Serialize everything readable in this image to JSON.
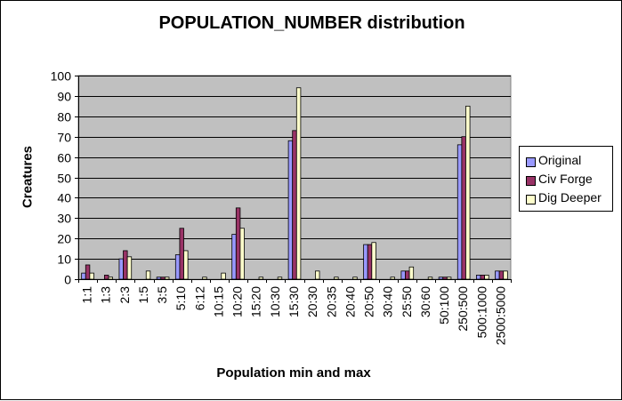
{
  "chart_data": {
    "type": "bar",
    "title": "POPULATION_NUMBER distribution",
    "xlabel": "Population min and max",
    "ylabel": "Creatures",
    "ylim": [
      0,
      100
    ],
    "yticks": [
      0,
      10,
      20,
      30,
      40,
      50,
      60,
      70,
      80,
      90,
      100
    ],
    "grid": true,
    "legend_position": "right",
    "categories": [
      "1:1",
      "1:3",
      "2:3",
      "1:5",
      "3:5",
      "5:10",
      "6:12",
      "10:15",
      "10:20",
      "15:20",
      "10:30",
      "15:30",
      "20:30",
      "20:35",
      "20:40",
      "20:50",
      "30:40",
      "25:50",
      "30:60",
      "50:100",
      "250:500",
      "500:1000",
      "2500:5000"
    ],
    "series": [
      {
        "name": "Original",
        "color": "#9999ff",
        "values": [
          3,
          0,
          10,
          0,
          1,
          12,
          0,
          0,
          22,
          0,
          0,
          68,
          0,
          0,
          0,
          17,
          0,
          4,
          0,
          1,
          66,
          2,
          4
        ]
      },
      {
        "name": "Civ Forge",
        "color": "#993366",
        "values": [
          7,
          2,
          14,
          0,
          1,
          25,
          0,
          0,
          35,
          0,
          0,
          73,
          0,
          0,
          0,
          17,
          0,
          4,
          0,
          1,
          70,
          2,
          4
        ]
      },
      {
        "name": "Dig Deeper",
        "color": "#ffffcc",
        "values": [
          3,
          1,
          11,
          4,
          1,
          14,
          1,
          3,
          25,
          1,
          1,
          94,
          4,
          1,
          1,
          18,
          1,
          6,
          1,
          1,
          85,
          2,
          4
        ]
      }
    ]
  }
}
